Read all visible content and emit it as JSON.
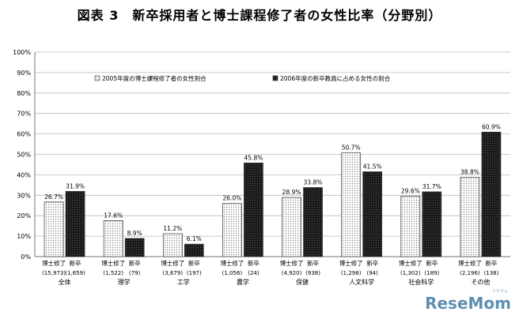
{
  "chart_data": {
    "type": "bar",
    "title": "図表 3　新卒採用者と博士課程修了者の女性比率（分野別）",
    "ylim": [
      0,
      100
    ],
    "yticks": [
      "0%",
      "10%",
      "20%",
      "30%",
      "40%",
      "50%",
      "60%",
      "70%",
      "80%",
      "90%",
      "100%"
    ],
    "categories": [
      "全体",
      "理学",
      "工学",
      "農学",
      "保健",
      "人文科学",
      "社会科学",
      "その他"
    ],
    "bar_labels": [
      "博士修了",
      "新卒"
    ],
    "counts": [
      [
        "(15,973)",
        "(1,659)"
      ],
      [
        "(1,522)",
        "(79)"
      ],
      [
        "(3,679)",
        "(197)"
      ],
      [
        "(1,056)",
        "(24)"
      ],
      [
        "(4,920)",
        "(938)"
      ],
      [
        "(1,298)",
        "(94)"
      ],
      [
        "(1,302)",
        "(189)"
      ],
      [
        "(2,196)",
        "(138)"
      ]
    ],
    "series": [
      {
        "name": "2005年度の博士課程修了者の女性割合",
        "values": [
          26.7,
          17.6,
          11.2,
          26.0,
          28.9,
          50.7,
          29.6,
          38.8
        ],
        "labels": [
          "26.7%",
          "17.6%",
          "11.2%",
          "26.0%",
          "28.9%",
          "50.7%",
          "29.6%",
          "38.8%"
        ],
        "pattern": "dots"
      },
      {
        "name": "2006年度の新卒教員に占める女性の割合",
        "values": [
          31.9,
          8.9,
          6.1,
          45.8,
          33.8,
          41.5,
          31.7,
          60.9
        ],
        "labels": [
          "31.9%",
          "8.9%",
          "6.1%",
          "45.8%",
          "33.8%",
          "41.5%",
          "31.7%",
          "60.9%"
        ],
        "pattern": "dark"
      }
    ],
    "grid": true,
    "legend": "top-inside"
  },
  "colors": {
    "dark": "#222222",
    "dots": "#dddddd",
    "grid": "#bbbbbb"
  },
  "watermark": {
    "brand": "ReseMom",
    "sub": "リセマム"
  }
}
